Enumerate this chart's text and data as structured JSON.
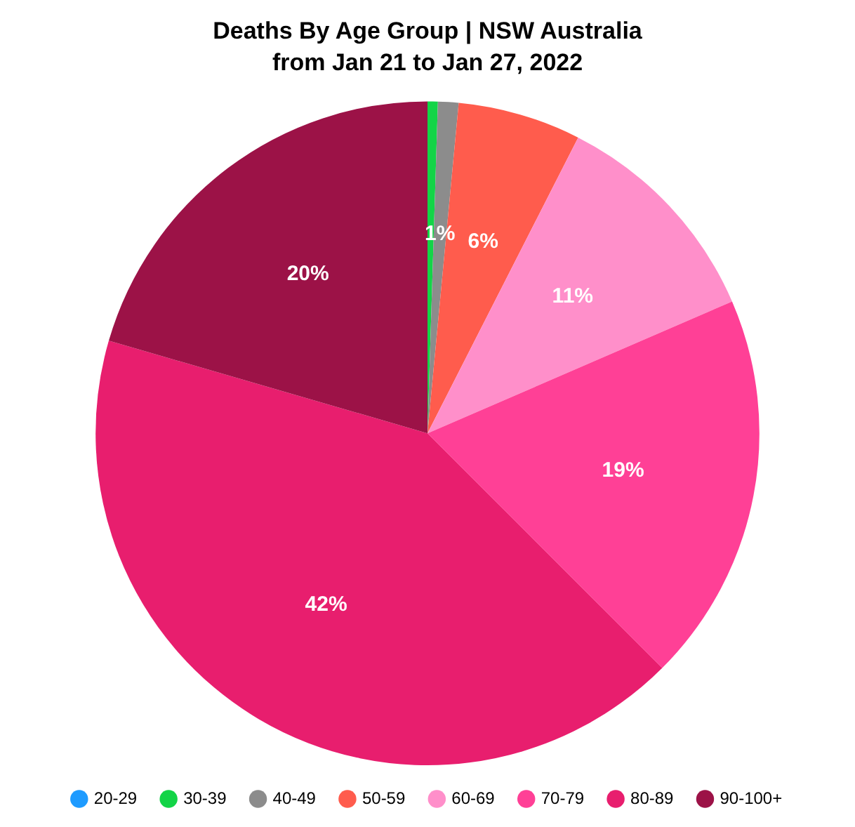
{
  "chart_data": {
    "type": "pie",
    "title": "Deaths By Age Group | NSW Australia\nfrom Jan 21 to Jan 27, 2022",
    "categories": [
      "20-29",
      "30-39",
      "40-49",
      "50-59",
      "60-69",
      "70-79",
      "80-89",
      "90-100+"
    ],
    "values": [
      0,
      0.5,
      1,
      6,
      11,
      19,
      42,
      20.5
    ],
    "colors": [
      "#1e9bff",
      "#13d447",
      "#8c8c8c",
      "#ff5c4d",
      "#ff8fca",
      "#ff4096",
      "#e81e6e",
      "#9c1247"
    ],
    "value_labels": [
      null,
      null,
      "1%",
      "6%",
      "11%",
      "19%",
      "42%",
      "20%"
    ],
    "legend": "bottom"
  }
}
